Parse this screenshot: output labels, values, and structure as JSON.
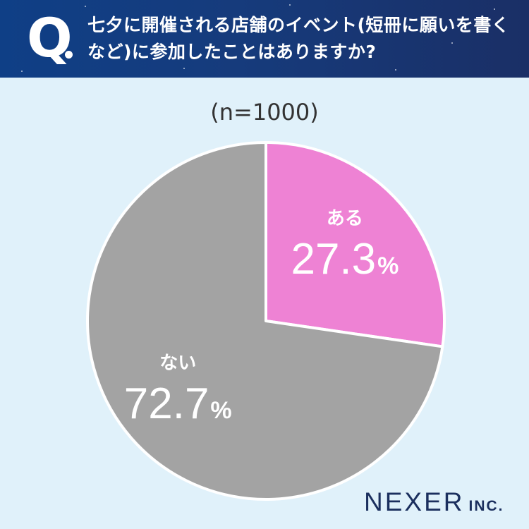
{
  "header": {
    "q_mark": "Q",
    "question": "七夕に開催される店舗のイベント(短冊に願いを書くなど)に参加したことはありますか?"
  },
  "sample_size": "(n=1000)",
  "logo": {
    "main": "NEXER",
    "suffix": "INC."
  },
  "colors": {
    "yes": "#ee82d4",
    "no": "#a3a3a3",
    "header": "#15407f"
  },
  "chart_data": {
    "type": "pie",
    "title": "七夕に開催される店舗のイベント(短冊に願いを書くなど)に参加したことはありますか?",
    "subtitle": "(n=1000)",
    "slices": [
      {
        "label": "ある",
        "value": 27.3,
        "display": "27.3",
        "unit": "%",
        "color": "#ee82d4"
      },
      {
        "label": "ない",
        "value": 72.7,
        "display": "72.7",
        "unit": "%",
        "color": "#a3a3a3"
      }
    ],
    "start": "12 o'clock",
    "direction": "clockwise",
    "legend": "none (labels inside slices)"
  }
}
